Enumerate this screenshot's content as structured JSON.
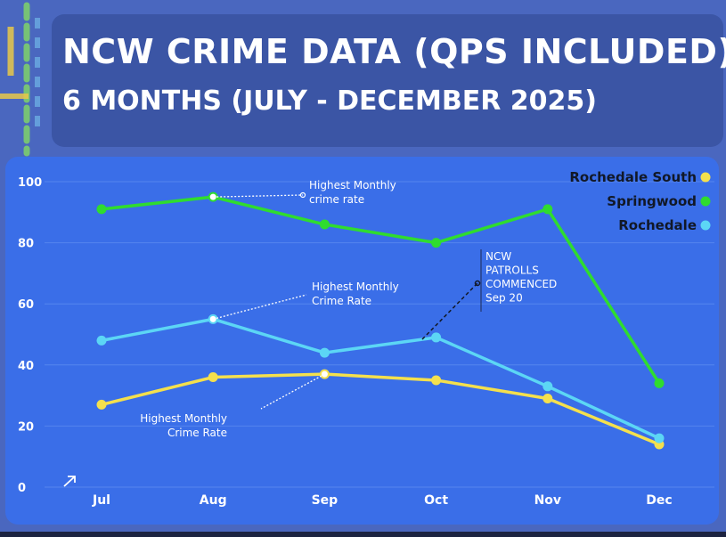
{
  "title": {
    "line1": "NCW CRIME DATA (QPS INCLUDED)",
    "line2": "6 MONTHS (JULY - DECEMBER 2025)"
  },
  "colors": {
    "background": "#4a67bf",
    "title_card": "#3b55a5",
    "chart_bg": "#3a6ee8",
    "rochedale_south": "#f4e04d",
    "springwood": "#2fdc2f",
    "rochedale": "#5cd6f5"
  },
  "chart_data": {
    "type": "line",
    "categories": [
      "Jul",
      "Aug",
      "Sep",
      "Oct",
      "Nov",
      "Dec"
    ],
    "ylim": [
      0,
      100
    ],
    "yticks": [
      0,
      20,
      40,
      60,
      80,
      100
    ],
    "grid": true,
    "legend_position": "top-right",
    "series": [
      {
        "name": "Rochedale South",
        "color": "#f4e04d",
        "values": [
          27,
          36,
          37,
          35,
          29,
          14
        ]
      },
      {
        "name": "Springwood",
        "color": "#2fdc2f",
        "values": [
          91,
          95,
          86,
          80,
          91,
          34
        ]
      },
      {
        "name": "Rochedale",
        "color": "#5cd6f5",
        "values": [
          48,
          55,
          44,
          49,
          33,
          16
        ]
      }
    ],
    "annotations": [
      {
        "text": [
          "Highest Monthly",
          "crime rate"
        ],
        "series": 1,
        "point": 1
      },
      {
        "text": [
          "Highest Monthly",
          "Crime Rate"
        ],
        "series": 2,
        "point": 1
      },
      {
        "text": [
          "Highest Monthly",
          "Crime Rate"
        ],
        "series": 0,
        "point": 2
      },
      {
        "text": [
          "NCW",
          "PATROLLS",
          "COMMENCED",
          "Sep 20"
        ]
      }
    ]
  }
}
